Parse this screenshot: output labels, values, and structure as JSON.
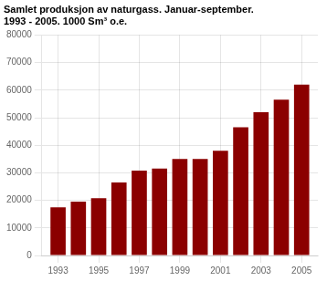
{
  "chart_data": {
    "type": "bar",
    "title": [
      "Samlet produksjon av naturgass. Januar-september.",
      "1993 - 2005. 1000 Sm³ o.e."
    ],
    "x": [
      1993,
      1994,
      1995,
      1996,
      1997,
      1998,
      1999,
      2000,
      2001,
      2002,
      2003,
      2004,
      2005
    ],
    "values": [
      17500,
      19500,
      20800,
      26500,
      30800,
      31500,
      35000,
      35000,
      38000,
      46500,
      52000,
      56500,
      62000
    ],
    "color": "#8B0000",
    "xlim": [
      1992.2,
      2005.8
    ],
    "xticks": [
      1993,
      1995,
      1997,
      1999,
      2001,
      2003,
      2005
    ],
    "ylim": [
      0,
      80000
    ],
    "yticks": [
      0,
      10000,
      20000,
      30000,
      40000,
      50000,
      60000,
      70000,
      80000
    ],
    "grid": true
  }
}
